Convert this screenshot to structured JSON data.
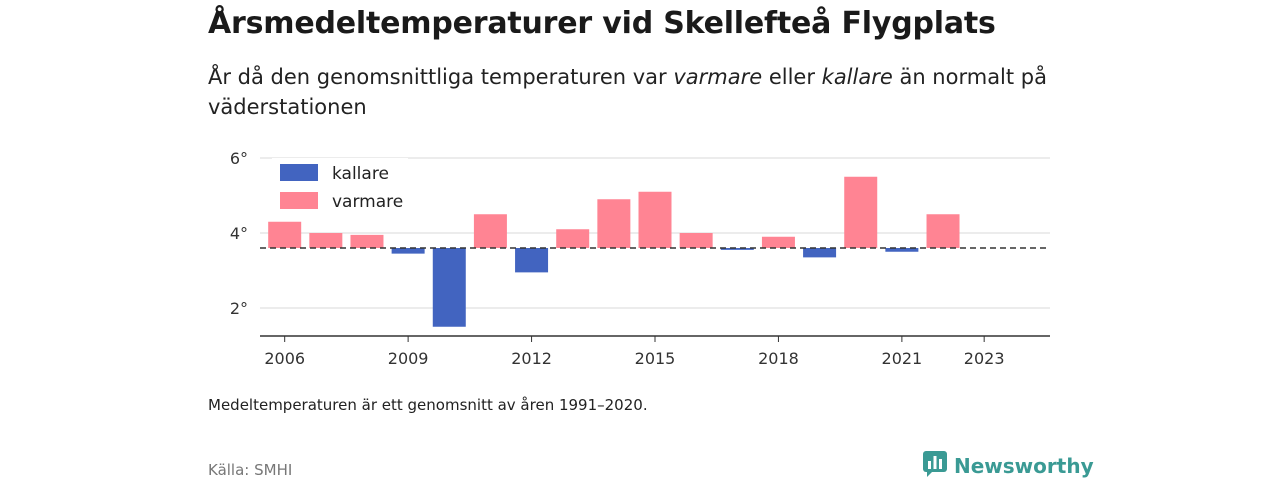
{
  "title": "Årsmedeltemperaturer vid Skellefteå Flygplats",
  "subtitle": {
    "part1": "År då den genomsnittliga temperaturen var ",
    "warmer": "varmare",
    "part2": " eller ",
    "colder": "kallare",
    "part3": " än normalt på väderstationen"
  },
  "footnote": "Medeltemperaturen är ett genomsnitt av åren 1991–2020.",
  "source": "Källa: SMHI",
  "brand": {
    "name": "Newsworthy",
    "icon": "newsworthy-logo-icon",
    "color": "#3a9a94"
  },
  "chart_data": {
    "type": "bar",
    "baseline": 3.6,
    "ylim": [
      1.3,
      6.0
    ],
    "yticks": [
      {
        "value": 2,
        "label": "2°"
      },
      {
        "value": 4,
        "label": "4°"
      },
      {
        "value": 6,
        "label": "6°"
      }
    ],
    "xlim": [
      2005.4,
      2024.6
    ],
    "xticks": [
      {
        "value": 2006,
        "label": "2006"
      },
      {
        "value": 2009,
        "label": "2009"
      },
      {
        "value": 2012,
        "label": "2012"
      },
      {
        "value": 2015,
        "label": "2015"
      },
      {
        "value": 2018,
        "label": "2018"
      },
      {
        "value": 2021,
        "label": "2021"
      },
      {
        "value": 2023,
        "label": "2023"
      }
    ],
    "x": [
      2006,
      2007,
      2008,
      2009,
      2010,
      2011,
      2012,
      2013,
      2014,
      2015,
      2016,
      2017,
      2018,
      2019,
      2020,
      2021,
      2022
    ],
    "values": [
      4.3,
      4.0,
      3.95,
      3.45,
      1.5,
      4.5,
      2.95,
      4.1,
      4.9,
      5.1,
      4.0,
      3.55,
      3.9,
      3.35,
      5.5,
      3.5,
      4.5
    ],
    "legend": [
      {
        "name": "kallare",
        "color": "#4264c0"
      },
      {
        "name": "varmare",
        "color": "#ff8493"
      }
    ],
    "grid": true,
    "legend_position": "top-left"
  }
}
